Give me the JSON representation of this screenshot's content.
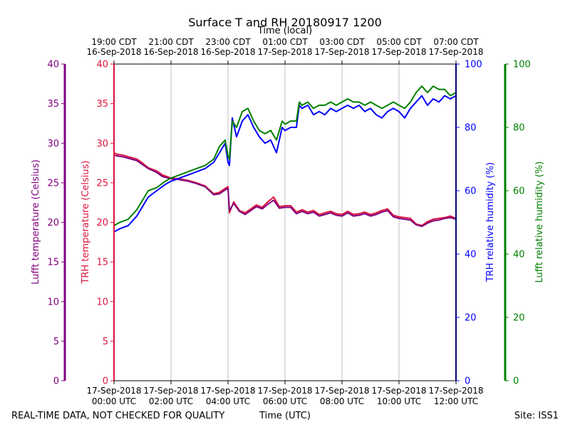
{
  "chart_data": {
    "type": "line",
    "title": "Surface T and RH 20180917 1200",
    "top_axis_label": "Time (local)",
    "top_ticks": [
      {
        "line1": "19:00 CDT",
        "line2": "16-Sep-2018"
      },
      {
        "line1": "21:00 CDT",
        "line2": "16-Sep-2018"
      },
      {
        "line1": "23:00 CDT",
        "line2": "16-Sep-2018"
      },
      {
        "line1": "01:00 CDT",
        "line2": "17-Sep-2018"
      },
      {
        "line1": "03:00 CDT",
        "line2": "17-Sep-2018"
      },
      {
        "line1": "05:00 CDT",
        "line2": "17-Sep-2018"
      },
      {
        "line1": "07:00 CDT",
        "line2": "17-Sep-2018"
      }
    ],
    "bottom_ticks": [
      {
        "line1": "17-Sep-2018",
        "line2": "00:00 UTC"
      },
      {
        "line1": "17-Sep-2018",
        "line2": "02:00 UTC"
      },
      {
        "line1": "17-Sep-2018",
        "line2": "04:00 UTC"
      },
      {
        "line1": "17-Sep-2018",
        "line2": "06:00 UTC"
      },
      {
        "line1": "17-Sep-2018",
        "line2": "08:00 UTC"
      },
      {
        "line1": "17-Sep-2018",
        "line2": "10:00 UTC"
      },
      {
        "line1": "17-Sep-2018",
        "line2": "12:00 UTC"
      }
    ],
    "xlabel": "Time (UTC)",
    "xlim": [
      0,
      12
    ],
    "x_grid_hours": [
      2,
      4,
      6,
      8,
      10
    ],
    "temp_axis": {
      "ylim": [
        0,
        40
      ],
      "ticks": [
        0,
        5,
        10,
        15,
        20,
        25,
        30,
        35,
        40
      ]
    },
    "rh_axis": {
      "ylim": [
        0,
        100
      ],
      "ticks": [
        0,
        20,
        40,
        60,
        80,
        100
      ]
    },
    "axes": [
      {
        "key": "lufft_temp",
        "label": "Lufft temperature (Celsius)",
        "color": "#800080"
      },
      {
        "key": "trh_temp",
        "label": "TRH temperature (Celsius)",
        "color": "#dc143c"
      },
      {
        "key": "trh_rh",
        "label": "TRH relative humidity (%)",
        "color": "#0000ff"
      },
      {
        "key": "lufft_rh",
        "label": "Lufft relative humidity (%)",
        "color": "#008000"
      }
    ],
    "series": [
      {
        "key": "trh_temp",
        "axis": "temp",
        "color": "#dc143c",
        "x": [
          0,
          0.1,
          0.3,
          0.5,
          0.8,
          1.0,
          1.2,
          1.5,
          1.7,
          2.0,
          2.3,
          2.6,
          2.9,
          3.2,
          3.5,
          3.7,
          3.9,
          4.0,
          4.05,
          4.2,
          4.4,
          4.6,
          4.8,
          5.0,
          5.2,
          5.4,
          5.6,
          5.8,
          6.0,
          6.2,
          6.4,
          6.6,
          6.8,
          7.0,
          7.2,
          7.4,
          7.6,
          7.8,
          8.0,
          8.2,
          8.4,
          8.6,
          8.8,
          9.0,
          9.2,
          9.4,
          9.6,
          9.8,
          10.0,
          10.2,
          10.4,
          10.6,
          10.8,
          11.0,
          11.2,
          11.4,
          11.6,
          11.8,
          12.0
        ],
        "values": [
          28.8,
          28.6,
          28.5,
          28.3,
          28.0,
          27.5,
          26.9,
          26.5,
          26.0,
          25.6,
          25.5,
          25.3,
          25.0,
          24.6,
          23.6,
          23.8,
          24.3,
          24.5,
          21.2,
          22.6,
          21.5,
          21.2,
          21.7,
          22.2,
          21.9,
          22.6,
          23.2,
          22.0,
          22.1,
          22.1,
          21.3,
          21.6,
          21.3,
          21.5,
          21.0,
          21.2,
          21.4,
          21.1,
          21.0,
          21.4,
          21.0,
          21.1,
          21.3,
          21.0,
          21.2,
          21.5,
          21.7,
          20.9,
          20.7,
          20.6,
          20.5,
          19.8,
          19.6,
          20.1,
          20.4,
          20.5,
          20.6,
          20.8,
          20.5
        ]
      },
      {
        "key": "lufft_temp",
        "axis": "temp",
        "color": "#800080",
        "x": [
          0,
          0.1,
          0.3,
          0.5,
          0.8,
          1.0,
          1.2,
          1.5,
          1.7,
          2.0,
          2.3,
          2.6,
          2.9,
          3.2,
          3.5,
          3.7,
          3.9,
          4.0,
          4.05,
          4.2,
          4.4,
          4.6,
          4.8,
          5.0,
          5.2,
          5.4,
          5.6,
          5.8,
          6.0,
          6.2,
          6.4,
          6.6,
          6.8,
          7.0,
          7.2,
          7.4,
          7.6,
          7.8,
          8.0,
          8.2,
          8.4,
          8.6,
          8.8,
          9.0,
          9.2,
          9.4,
          9.6,
          9.8,
          10.0,
          10.2,
          10.4,
          10.6,
          10.8,
          11.0,
          11.2,
          11.4,
          11.6,
          11.8,
          12.0
        ],
        "values": [
          28.5,
          28.4,
          28.3,
          28.1,
          27.8,
          27.3,
          26.8,
          26.3,
          25.8,
          25.5,
          25.4,
          25.2,
          24.9,
          24.5,
          23.5,
          23.6,
          24.1,
          24.3,
          21.5,
          22.4,
          21.4,
          21.0,
          21.5,
          22.0,
          21.7,
          22.3,
          22.8,
          21.8,
          21.9,
          21.9,
          21.1,
          21.4,
          21.1,
          21.3,
          20.8,
          21.0,
          21.2,
          20.9,
          20.8,
          21.2,
          20.8,
          20.9,
          21.1,
          20.8,
          21.0,
          21.3,
          21.5,
          20.7,
          20.5,
          20.4,
          20.3,
          19.7,
          19.5,
          19.9,
          20.2,
          20.3,
          20.5,
          20.6,
          20.4
        ]
      },
      {
        "key": "trh_rh",
        "axis": "rh",
        "color": "#0000ff",
        "x": [
          0,
          0.2,
          0.5,
          0.8,
          1.0,
          1.2,
          1.5,
          1.8,
          2.0,
          2.3,
          2.6,
          2.9,
          3.2,
          3.5,
          3.7,
          3.9,
          4.0,
          4.05,
          4.15,
          4.3,
          4.5,
          4.7,
          4.9,
          5.1,
          5.3,
          5.5,
          5.7,
          5.9,
          6.0,
          6.2,
          6.4,
          6.5,
          6.6,
          6.8,
          7.0,
          7.2,
          7.4,
          7.6,
          7.8,
          8.0,
          8.2,
          8.4,
          8.6,
          8.8,
          9.0,
          9.2,
          9.4,
          9.6,
          9.8,
          10.0,
          10.2,
          10.4,
          10.6,
          10.8,
          11.0,
          11.2,
          11.4,
          11.6,
          11.8,
          12.0
        ],
        "values": [
          47,
          48,
          49,
          52,
          55,
          58,
          60,
          62,
          63,
          64,
          65,
          66,
          67,
          69,
          72,
          75,
          69,
          68,
          83,
          77,
          82,
          84,
          80,
          77,
          75,
          76,
          72,
          80,
          79,
          80,
          80,
          87,
          86,
          87,
          84,
          85,
          84,
          86,
          85,
          86,
          87,
          86,
          87,
          85,
          86,
          84,
          83,
          85,
          86,
          85,
          83,
          86,
          88,
          90,
          87,
          89,
          88,
          90,
          89,
          90
        ]
      },
      {
        "key": "lufft_rh",
        "axis": "rh",
        "color": "#008000",
        "x": [
          0,
          0.2,
          0.5,
          0.8,
          1.0,
          1.2,
          1.5,
          1.8,
          2.0,
          2.3,
          2.6,
          2.9,
          3.2,
          3.5,
          3.7,
          3.9,
          4.0,
          4.05,
          4.15,
          4.3,
          4.5,
          4.7,
          4.9,
          5.1,
          5.3,
          5.5,
          5.7,
          5.9,
          6.0,
          6.2,
          6.4,
          6.5,
          6.6,
          6.8,
          7.0,
          7.2,
          7.4,
          7.6,
          7.8,
          8.0,
          8.2,
          8.4,
          8.6,
          8.8,
          9.0,
          9.2,
          9.4,
          9.6,
          9.8,
          10.0,
          10.2,
          10.4,
          10.6,
          10.8,
          11.0,
          11.2,
          11.4,
          11.6,
          11.8,
          12.0
        ],
        "values": [
          49,
          50,
          51,
          54,
          57,
          60,
          61,
          63,
          64,
          65,
          66,
          67,
          68,
          70,
          74,
          76,
          71,
          70,
          82,
          80,
          85,
          86,
          82,
          79,
          78,
          79,
          76,
          82,
          81,
          82,
          82,
          88,
          87,
          88,
          86,
          87,
          87,
          88,
          87,
          88,
          89,
          88,
          88,
          87,
          88,
          87,
          86,
          87,
          88,
          87,
          86,
          88,
          91,
          93,
          91,
          93,
          92,
          92,
          90,
          91
        ]
      }
    ]
  },
  "footer": {
    "left": "REAL-TIME DATA, NOT CHECKED FOR QUALITY",
    "center": "Time (UTC)",
    "right": "Site: ISS1"
  }
}
